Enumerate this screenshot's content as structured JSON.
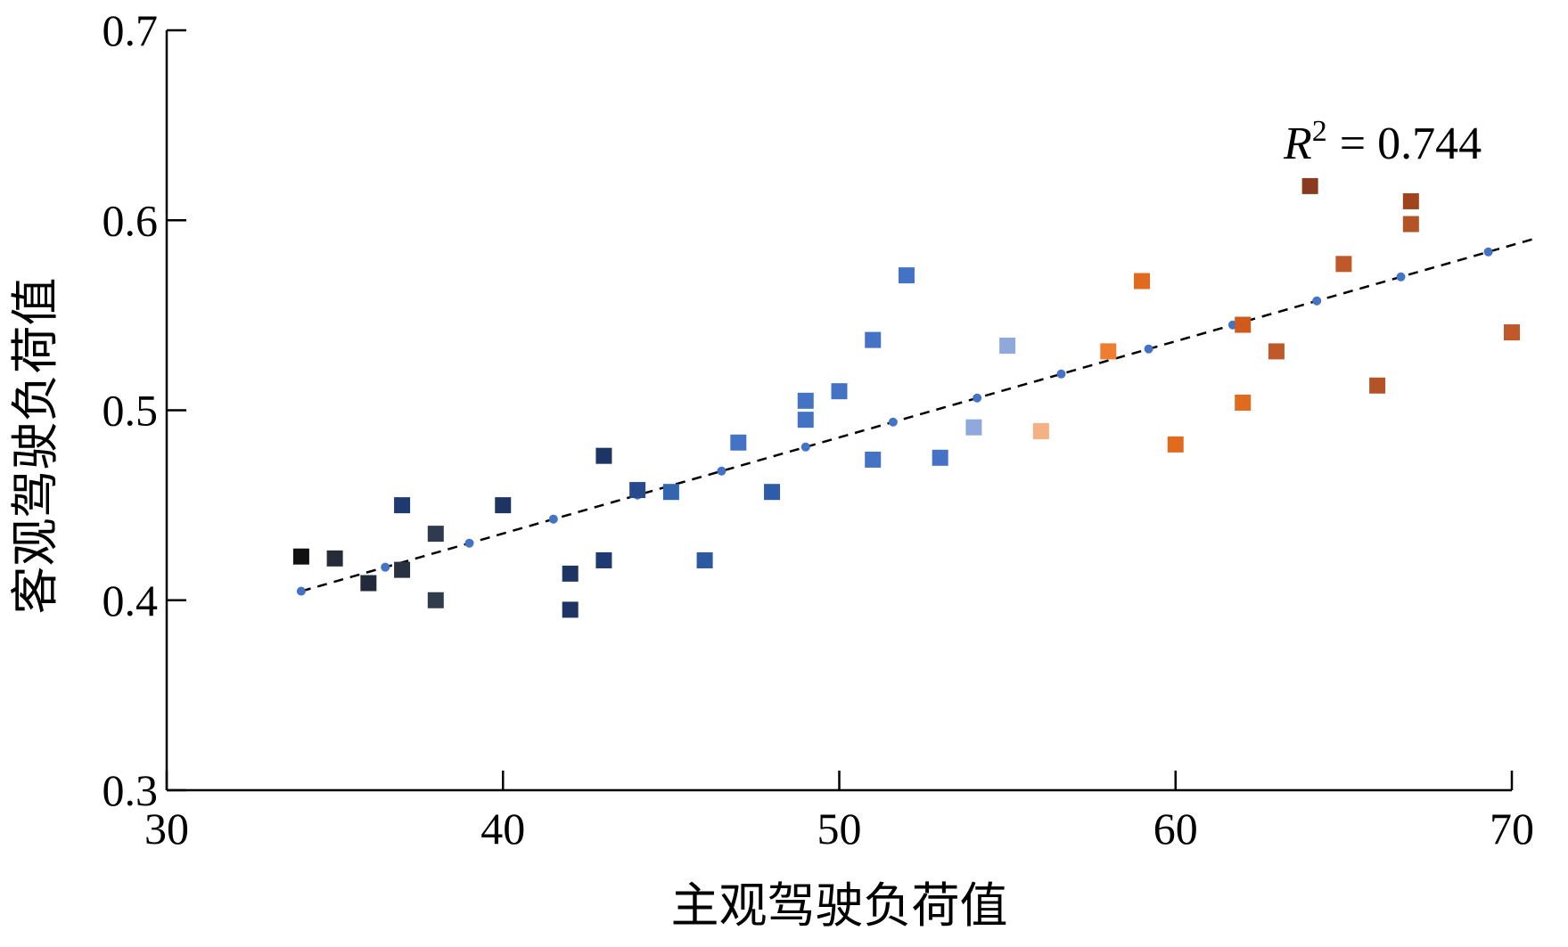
{
  "chart_data": {
    "type": "scatter",
    "xlabel": "主观驾驶负荷值",
    "ylabel": "客观驾驶负荷值",
    "xlim": [
      30,
      70
    ],
    "ylim": [
      0.3,
      0.7
    ],
    "x_ticks": [
      30,
      40,
      50,
      60,
      70
    ],
    "y_ticks": [
      0.3,
      0.4,
      0.5,
      0.6,
      0.7
    ],
    "x_tick_labels": [
      "30",
      "40",
      "50",
      "60",
      "70"
    ],
    "y_tick_labels": [
      "0.3",
      "0.4",
      "0.5",
      "0.6",
      "0.7"
    ],
    "grid": false,
    "legend": "none",
    "annotation": {
      "r_symbol": "R",
      "r_exponent": "2",
      "r_value": "= 0.744"
    },
    "points": [
      {
        "x": 34,
        "y": 0.423,
        "color": "#111111"
      },
      {
        "x": 35,
        "y": 0.422,
        "color": "#262d38"
      },
      {
        "x": 36,
        "y": 0.409,
        "color": "#222a3a"
      },
      {
        "x": 37,
        "y": 0.45,
        "color": "#1f3a70"
      },
      {
        "x": 37,
        "y": 0.416,
        "color": "#2a3242"
      },
      {
        "x": 38,
        "y": 0.435,
        "color": "#2e3a4e"
      },
      {
        "x": 38,
        "y": 0.4,
        "color": "#303b4c"
      },
      {
        "x": 40,
        "y": 0.45,
        "color": "#1e3564"
      },
      {
        "x": 42,
        "y": 0.414,
        "color": "#1e3564"
      },
      {
        "x": 42,
        "y": 0.395,
        "color": "#1e3564"
      },
      {
        "x": 43,
        "y": 0.476,
        "color": "#1d3565"
      },
      {
        "x": 43,
        "y": 0.421,
        "color": "#1f3a70"
      },
      {
        "x": 44,
        "y": 0.458,
        "color": "#274a8c"
      },
      {
        "x": 45,
        "y": 0.457,
        "color": "#3366b0"
      },
      {
        "x": 46,
        "y": 0.421,
        "color": "#2c5aa0"
      },
      {
        "x": 47,
        "y": 0.483,
        "color": "#4472c4"
      },
      {
        "x": 48,
        "y": 0.457,
        "color": "#2e5ca8"
      },
      {
        "x": 49,
        "y": 0.505,
        "color": "#4472c4"
      },
      {
        "x": 49,
        "y": 0.495,
        "color": "#4472c4"
      },
      {
        "x": 50,
        "y": 0.51,
        "color": "#4472c4"
      },
      {
        "x": 51,
        "y": 0.537,
        "color": "#4472c4"
      },
      {
        "x": 51,
        "y": 0.474,
        "color": "#4472c4"
      },
      {
        "x": 52,
        "y": 0.571,
        "color": "#4472c4"
      },
      {
        "x": 53,
        "y": 0.475,
        "color": "#4472c4"
      },
      {
        "x": 54,
        "y": 0.491,
        "color": "#8fa9dc"
      },
      {
        "x": 55,
        "y": 0.534,
        "color": "#8fa9dc"
      },
      {
        "x": 56,
        "y": 0.489,
        "color": "#f4b183"
      },
      {
        "x": 58,
        "y": 0.531,
        "color": "#ed7d31"
      },
      {
        "x": 59,
        "y": 0.568,
        "color": "#e06b1e"
      },
      {
        "x": 60,
        "y": 0.482,
        "color": "#e06b1e"
      },
      {
        "x": 62,
        "y": 0.545,
        "color": "#d05a1c"
      },
      {
        "x": 62,
        "y": 0.504,
        "color": "#e06b1e"
      },
      {
        "x": 63,
        "y": 0.531,
        "color": "#c0582a"
      },
      {
        "x": 64,
        "y": 0.618,
        "color": "#8a3a1e"
      },
      {
        "x": 65,
        "y": 0.577,
        "color": "#c0582a"
      },
      {
        "x": 66,
        "y": 0.513,
        "color": "#b35328"
      },
      {
        "x": 67,
        "y": 0.61,
        "color": "#a0441e"
      },
      {
        "x": 67,
        "y": 0.598,
        "color": "#b35328"
      },
      {
        "x": 70,
        "y": 0.541,
        "color": "#c0582a"
      }
    ],
    "trend_line": {
      "x_start": 34,
      "x_end": 70.6,
      "slope": 0.00506,
      "intercept": 0.2327,
      "style": "dashed",
      "color": "#000000"
    },
    "trend_markers": {
      "x": [
        34,
        36.5,
        39,
        41.5,
        44,
        46.5,
        49,
        51.6,
        54.1,
        56.6,
        59.2,
        61.7,
        64.2,
        66.7,
        69.3
      ],
      "color": "#4472c4"
    }
  }
}
